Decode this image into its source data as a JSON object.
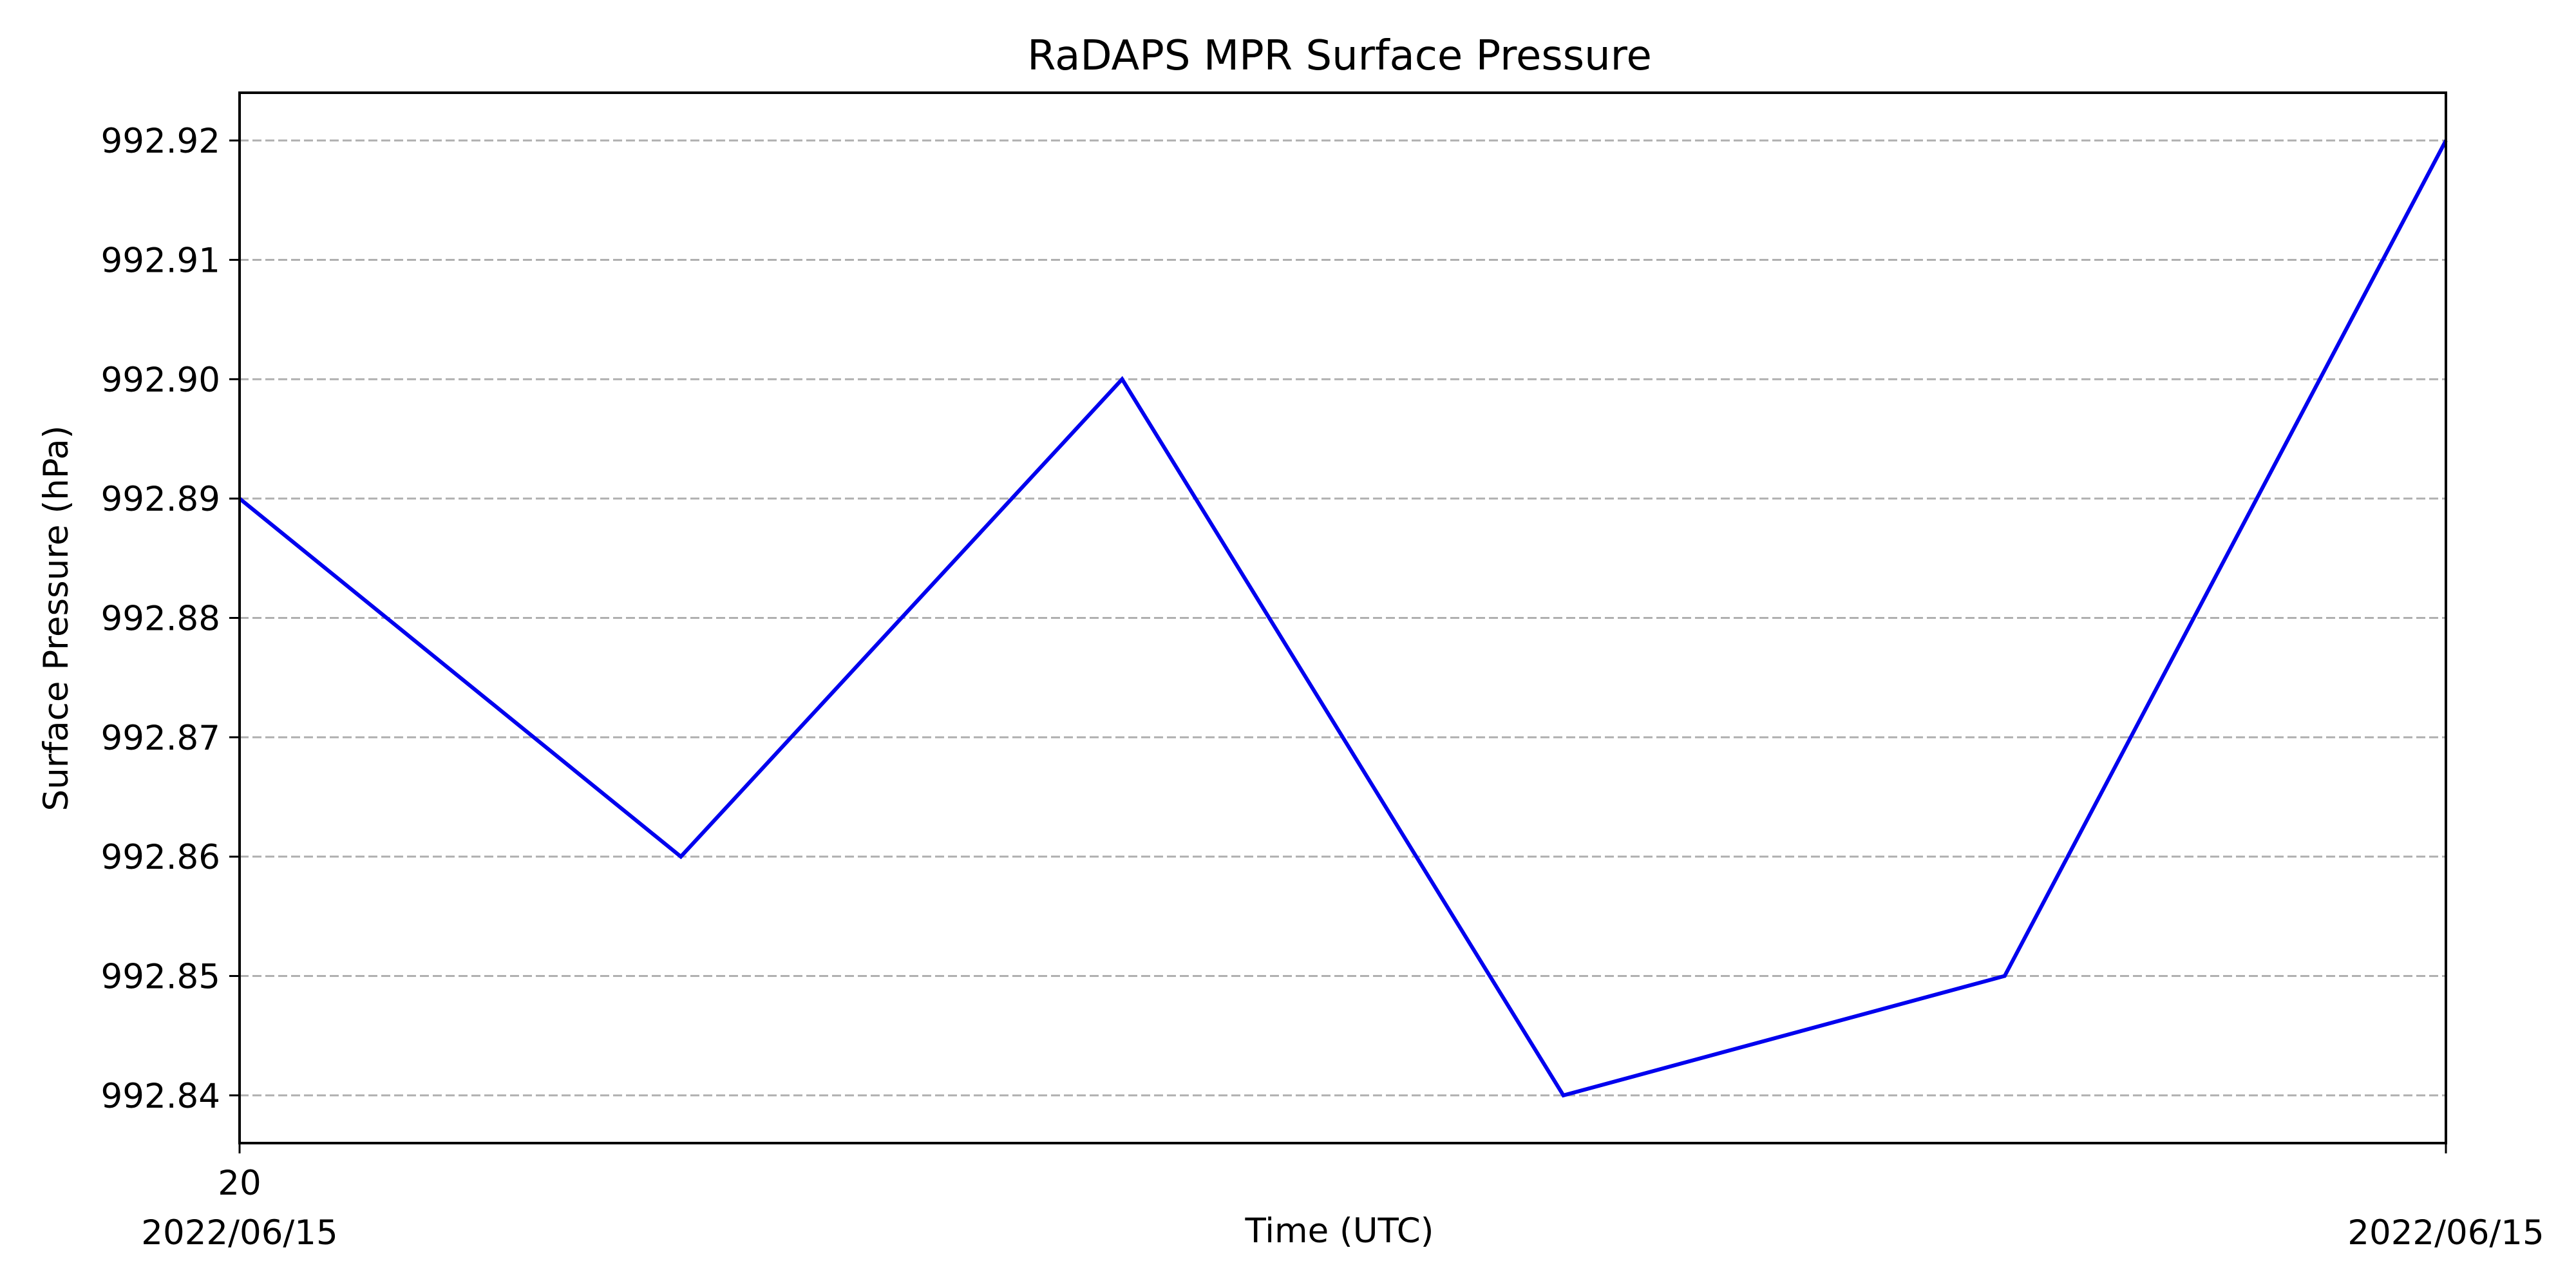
{
  "chart_data": {
    "type": "line",
    "title": "RaDAPS MPR Surface Pressure",
    "xlabel": "Time (UTC)",
    "ylabel": "Surface Pressure (hPa)",
    "x_tick_labels": [
      {
        "x": 0,
        "lines": [
          "20",
          "2022/06/15"
        ]
      },
      {
        "x": 5,
        "lines": [
          "",
          "2022/06/15"
        ]
      }
    ],
    "xlim": [
      0,
      5
    ],
    "ylim": [
      992.836,
      992.924
    ],
    "yticks": [
      992.84,
      992.85,
      992.86,
      992.87,
      992.88,
      992.89,
      992.9,
      992.91,
      992.92
    ],
    "ytick_labels": [
      "992.84",
      "992.85",
      "992.86",
      "992.87",
      "992.88",
      "992.89",
      "992.90",
      "992.91",
      "992.92"
    ],
    "grid": {
      "y": true,
      "x": false,
      "style": "dashed",
      "color": "#b0b0b0"
    },
    "series": [
      {
        "color": "#0000ee",
        "points": [
          {
            "x": 0,
            "y": 992.89
          },
          {
            "x": 1,
            "y": 992.86
          },
          {
            "x": 2,
            "y": 992.9
          },
          {
            "x": 3,
            "y": 992.84
          },
          {
            "x": 4,
            "y": 992.85
          },
          {
            "x": 5,
            "y": 992.92
          }
        ]
      }
    ]
  }
}
